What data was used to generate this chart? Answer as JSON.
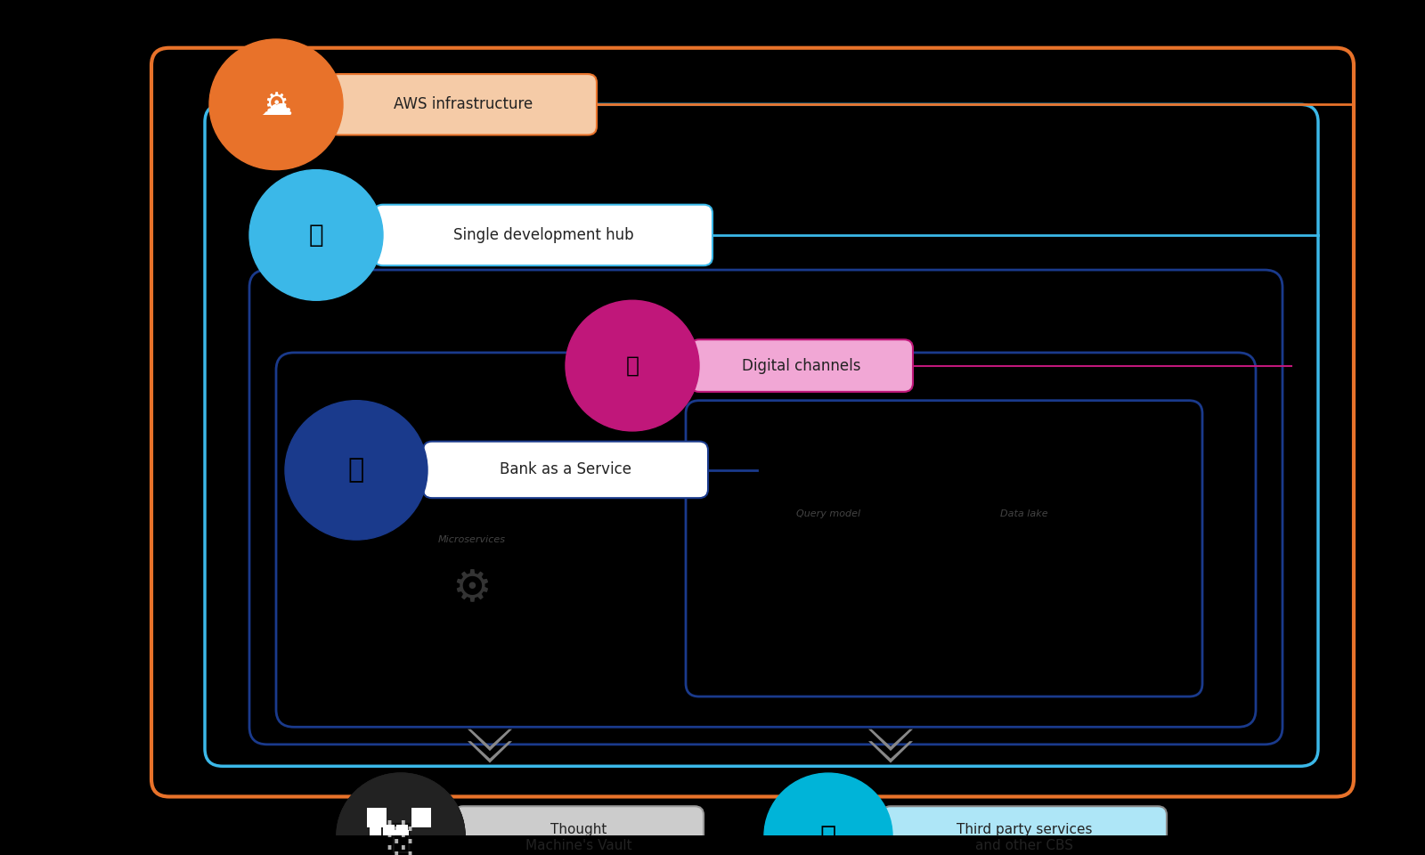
{
  "bg_color": "#000000",
  "canvas_bg": "#000000",
  "aws_color": "#E8722A",
  "aws_label": "AWS infrastructure",
  "aws_label_bg": "#F5CBA7",
  "sdh_color": "#3BB8E8",
  "sdh_label": "Single development hub",
  "sdh_label_bg": "#AED6F1",
  "dc_color": "#C0177A",
  "dc_label": "Digital channels",
  "dc_label_bg": "#F1A7D5",
  "baas_color": "#1A3A8C",
  "baas_label": "Bank as a Service",
  "baas_label_bg": "#D6E4F7",
  "vault_color": "#1A1A1A",
  "vault_label": "Thought\nMachine's Vault",
  "vault_label_bg": "#CCCCCC",
  "tps_color": "#00B4D8",
  "tps_label": "Third party services\nand other CBS",
  "tps_label_bg": "#AEE6F7",
  "ms_label": "Microservices",
  "ql_label": "Query model",
  "dl_label": "Data lake",
  "outer_border_color": "#E8722A",
  "inner_border1_color": "#3BB8E8",
  "inner_border2_color": "#1A3A8C",
  "inner_border3_color": "#1A3A8C"
}
